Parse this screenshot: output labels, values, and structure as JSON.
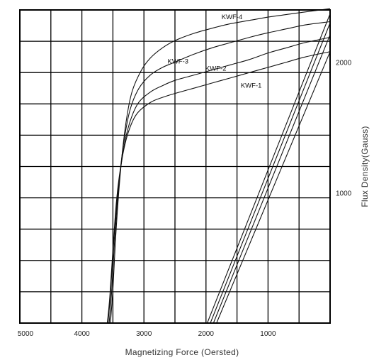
{
  "chart_data": {
    "type": "line",
    "xlabel": "Magnetizing Force (Oersted)",
    "ylabel": "Flux Density(Gauss)",
    "x_reversed": true,
    "xlim": [
      0,
      5000
    ],
    "ylim": [
      0,
      2400
    ],
    "x_ticks": [
      5000,
      4000,
      3000,
      2000,
      1000
    ],
    "y_ticks": [
      2000,
      1000
    ],
    "grid": true,
    "series": [
      {
        "name": "KWF-4",
        "curve": {
          "x": [
            3540,
            3500,
            3450,
            3380,
            3300,
            3200,
            3050,
            2900,
            2700,
            2500,
            2200,
            1900,
            1600,
            1300,
            1000,
            700,
            400,
            0
          ],
          "y": [
            0,
            260,
            700,
            1150,
            1500,
            1760,
            1930,
            2030,
            2110,
            2165,
            2220,
            2260,
            2295,
            2320,
            2345,
            2365,
            2385,
            2410
          ]
        },
        "recoil": {
          "x": [
            1980,
            0
          ],
          "y": [
            0,
            2370
          ]
        }
      },
      {
        "name": "KWF-3",
        "curve": {
          "x": [
            3560,
            3520,
            3470,
            3400,
            3320,
            3220,
            3080,
            2900,
            2700,
            2500,
            2200,
            1900,
            1600,
            1300,
            1000,
            700,
            400,
            0
          ],
          "y": [
            0,
            240,
            650,
            1080,
            1400,
            1640,
            1800,
            1900,
            1960,
            2000,
            2060,
            2110,
            2150,
            2190,
            2225,
            2255,
            2285,
            2310
          ]
        },
        "recoil": {
          "x": [
            1930,
            0
          ],
          "y": [
            0,
            2300
          ]
        }
      },
      {
        "name": "KWF-2",
        "curve": {
          "x": [
            3580,
            3540,
            3490,
            3420,
            3340,
            3240,
            3100,
            2900,
            2700,
            2500,
            2200,
            1900,
            1600,
            1300,
            1000,
            700,
            400,
            0
          ],
          "y": [
            0,
            220,
            600,
            1000,
            1300,
            1520,
            1680,
            1770,
            1820,
            1860,
            1900,
            1940,
            1980,
            2020,
            2070,
            2110,
            2150,
            2190
          ]
        },
        "recoil": {
          "x": [
            1880,
            0
          ],
          "y": [
            0,
            2210
          ]
        }
      },
      {
        "name": "KWF-1",
        "curve": {
          "x": [
            3590,
            3550,
            3500,
            3440,
            3360,
            3260,
            3120,
            2900,
            2700,
            2500,
            2200,
            1900,
            1600,
            1300,
            1000,
            700,
            400,
            0
          ],
          "y": [
            0,
            200,
            560,
            950,
            1240,
            1450,
            1600,
            1690,
            1730,
            1760,
            1800,
            1840,
            1880,
            1920,
            1960,
            2000,
            2040,
            2080
          ]
        },
        "recoil": {
          "x": [
            1830,
            0
          ],
          "y": [
            0,
            2080
          ]
        }
      }
    ],
    "labels": [
      {
        "text": "KWF-4",
        "x": 1750,
        "y": 2330
      },
      {
        "text": "KWF-3",
        "x": 2620,
        "y": 1990
      },
      {
        "text": "KWF-2",
        "x": 2010,
        "y": 1935
      },
      {
        "text": "KWF-1",
        "x": 1440,
        "y": 1805
      }
    ],
    "y_tick_labels": [
      {
        "text": "2000",
        "y": 2000
      },
      {
        "text": "1000",
        "y": 1000
      }
    ]
  }
}
